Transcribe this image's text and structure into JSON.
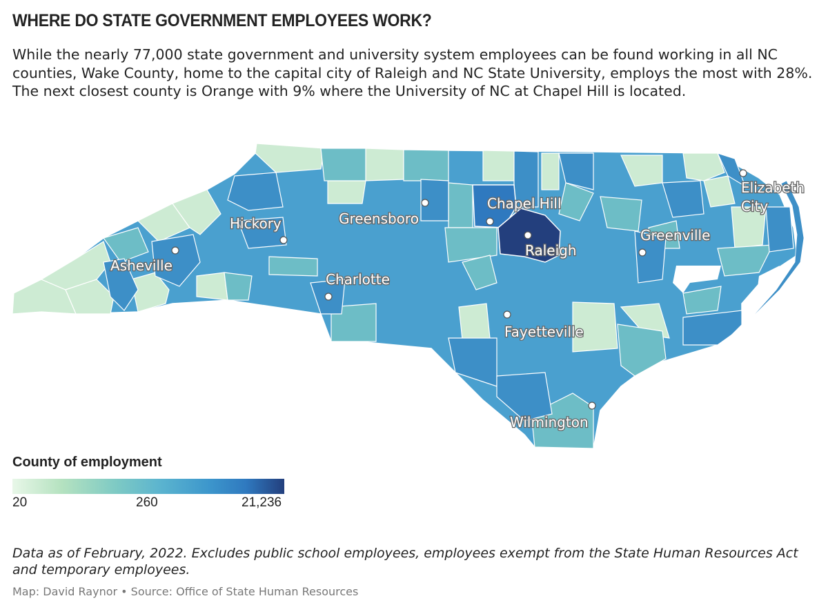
{
  "title": "WHERE DO STATE GOVERNMENT EMPLOYEES WORK?",
  "subtitle": "While the nearly 77,000 state government and university system employees can be found working in all NC counties, Wake County, home to the capital city of Raleigh and NC State University, employs the most with 28%. The next closest county is Orange with 9% where the University of NC at Chapel Hill is located.",
  "legend": {
    "title": "County of employment",
    "min_label": "20",
    "mid_label": "260",
    "max_label": "21,236",
    "colors": [
      "#e8f7e8",
      "#b5e2c0",
      "#7ecac4",
      "#5ab3cf",
      "#3d97cc",
      "#2f79bf",
      "#233f7d"
    ]
  },
  "cities": [
    {
      "name": "Asheville"
    },
    {
      "name": "Hickory"
    },
    {
      "name": "Greensboro"
    },
    {
      "name": "Chapel Hill"
    },
    {
      "name": "Raleigh"
    },
    {
      "name": "Greenville"
    },
    {
      "name": "Elizabeth"
    },
    {
      "name": "City"
    },
    {
      "name": "Charlotte"
    },
    {
      "name": "Fayetteville"
    },
    {
      "name": "Wilmington"
    }
  ],
  "highlight_counties": [
    {
      "name": "Wake",
      "color": "#233f7d"
    },
    {
      "name": "Orange",
      "color": "#2f79bf"
    }
  ],
  "footnote": "Data as of February, 2022. Excludes public school employees, employees exempt from the State Human Resources Act and temporary employees.",
  "credit": "Map: David Raynor • Source: Office of State Human Resources",
  "map_colors": {
    "base": "#4aa0cf",
    "light": "#cdebd3",
    "teal": "#6dbdc6",
    "ocean": "#ffffff",
    "border": "#ffffff"
  }
}
